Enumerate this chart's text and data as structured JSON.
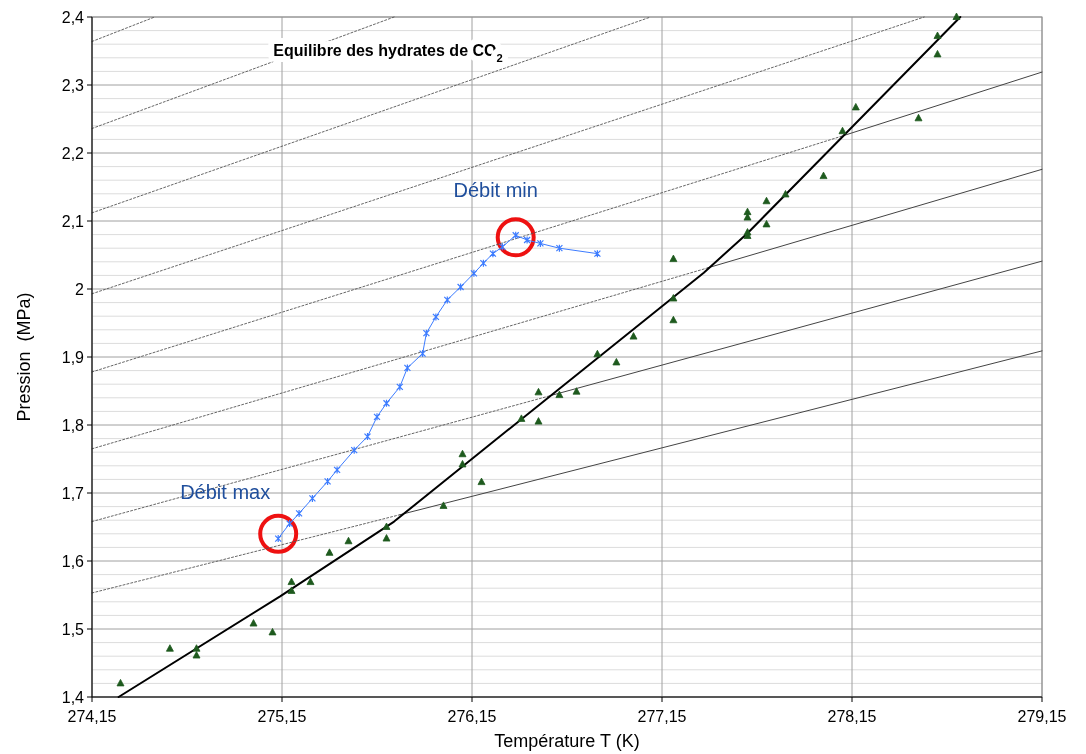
{
  "chart_data": {
    "type": "scatter",
    "title": "Equilibre des hydrates de CO$_{2}$",
    "xlabel": "Température T (K)",
    "ylabel": "Pression  (MPa)",
    "xlim": [
      274.15,
      279.15
    ],
    "ylim": [
      1.4,
      2.4
    ],
    "xticks": [
      {
        "value": 274.15,
        "label": "274,15"
      },
      {
        "value": 275.15,
        "label": "275,15"
      },
      {
        "value": 276.15,
        "label": "276,15"
      },
      {
        "value": 277.15,
        "label": "277,15"
      },
      {
        "value": 278.15,
        "label": "278,15"
      },
      {
        "value": 279.15,
        "label": "279,15"
      }
    ],
    "yticks": [
      {
        "value": 1.4,
        "label": "1,4"
      },
      {
        "value": 1.42,
        "label": null
      },
      {
        "value": 1.44,
        "label": null
      },
      {
        "value": 1.46,
        "label": null
      },
      {
        "value": 1.48,
        "label": null
      },
      {
        "value": 1.5,
        "label": "1,5"
      },
      {
        "value": 1.52,
        "label": null
      },
      {
        "value": 1.54,
        "label": null
      },
      {
        "value": 1.56,
        "label": null
      },
      {
        "value": 1.58,
        "label": null
      },
      {
        "value": 1.6,
        "label": "1,6"
      },
      {
        "value": 1.62,
        "label": null
      },
      {
        "value": 1.64,
        "label": null
      },
      {
        "value": 1.66,
        "label": null
      },
      {
        "value": 1.68,
        "label": null
      },
      {
        "value": 1.7,
        "label": "1,7"
      },
      {
        "value": 1.72,
        "label": null
      },
      {
        "value": 1.74,
        "label": null
      },
      {
        "value": 1.76,
        "label": null
      },
      {
        "value": 1.78,
        "label": null
      },
      {
        "value": 1.8,
        "label": "1,8"
      },
      {
        "value": 1.82,
        "label": null
      },
      {
        "value": 1.84,
        "label": null
      },
      {
        "value": 1.86,
        "label": null
      },
      {
        "value": 1.88,
        "label": null
      },
      {
        "value": 1.9,
        "label": "1,9"
      },
      {
        "value": 1.92,
        "label": null
      },
      {
        "value": 1.94,
        "label": null
      },
      {
        "value": 1.96,
        "label": null
      },
      {
        "value": 1.98,
        "label": null
      },
      2,
      {
        "value": 2.02,
        "label": null
      },
      {
        "value": 2.04,
        "label": null
      },
      {
        "value": 2.06,
        "label": null
      },
      {
        "value": 2.08,
        "label": null
      },
      {
        "value": 2.1,
        "label": "2,1"
      },
      {
        "value": 2.12,
        "label": null
      },
      {
        "value": 2.14,
        "label": null
      },
      {
        "value": 2.16,
        "label": null
      },
      {
        "value": 2.18,
        "label": null
      },
      {
        "value": 2.2,
        "label": "2,2"
      },
      {
        "value": 2.22,
        "label": null
      },
      {
        "value": 2.24,
        "label": null
      },
      {
        "value": 2.26,
        "label": null
      },
      {
        "value": 2.28,
        "label": null
      },
      {
        "value": 2.3,
        "label": "2,3"
      },
      {
        "value": 2.32,
        "label": null
      },
      {
        "value": 2.34,
        "label": null
      },
      {
        "value": 2.36,
        "label": null
      },
      {
        "value": 2.38,
        "label": null
      },
      {
        "value": 2.4,
        "label": "2,4"
      }
    ],
    "grid": true,
    "series": [
      {
        "type": "line",
        "color": "#555555",
        "line_style": "dotted",
        "x": [
          274.15,
          274.48
        ],
        "values": [
          2.364,
          2.4
        ]
      },
      {
        "type": "line",
        "color": "#555555",
        "line_style": "dotted",
        "x": [
          274.15,
          275.74
        ],
        "values": [
          2.236,
          2.4
        ]
      },
      {
        "type": "line",
        "color": "#555555",
        "line_style": "dotted",
        "x": [
          274.15,
          277.09
        ],
        "values": [
          2.112,
          2.4
        ]
      },
      {
        "type": "line",
        "color": "#555555",
        "line_style": "dotted",
        "x": [
          274.15,
          278.53
        ],
        "values": [
          1.993,
          2.4
        ]
      },
      {
        "type": "line",
        "color": "#555555",
        "line_style": "dotted",
        "x": [
          274.15,
          278.11
        ],
        "values": [
          1.878,
          2.226
        ]
      },
      {
        "type": "line",
        "color": "#555555",
        "line_style": "dotted",
        "x": [
          274.15,
          277.39
        ],
        "values": [
          1.765,
          2.031
        ]
      },
      {
        "type": "line",
        "color": "#555555",
        "line_style": "dotted",
        "x": [
          274.15,
          276.56
        ],
        "values": [
          1.658,
          1.843
        ]
      },
      {
        "type": "line",
        "color": "#555555",
        "line_style": "dotted",
        "x": [
          274.15,
          275.77
        ],
        "values": [
          1.553,
          1.668
        ]
      },
      {
        "type": "line",
        "color": "#444444",
        "line_style": "solid",
        "x": [
          278.11,
          279.15
        ],
        "values": [
          2.226,
          2.319
        ]
      },
      {
        "type": "line",
        "color": "#444444",
        "line_style": "solid",
        "x": [
          277.39,
          279.15
        ],
        "values": [
          2.031,
          2.176
        ]
      },
      {
        "type": "line",
        "color": "#444444",
        "line_style": "solid",
        "x": [
          276.56,
          279.15
        ],
        "values": [
          1.843,
          2.041
        ]
      },
      {
        "type": "line",
        "color": "#444444",
        "line_style": "solid",
        "x": [
          275.77,
          279.15
        ],
        "values": [
          1.668,
          1.909
        ]
      },
      {
        "type": "line",
        "color": "#000000",
        "line_style": "solid",
        "x": [
          274.29,
          275.14,
          275.74,
          276.1,
          277.37,
          277.6,
          278.1,
          278.72
        ],
        "values": [
          1.4,
          1.548,
          1.658,
          1.739,
          2.024,
          2.082,
          2.224,
          2.4
        ]
      },
      {
        "color": "#1e5a1e",
        "marker": "triangle",
        "x": [
          274.3,
          274.56,
          274.7,
          274.7,
          275.0,
          275.1,
          275.2,
          275.2,
          275.3,
          275.4,
          275.5,
          275.7,
          275.7,
          276.0,
          276.1,
          276.1,
          276.2,
          276.41,
          276.5,
          276.5,
          276.61,
          276.7,
          276.81,
          276.91,
          277.0,
          277.21,
          277.21,
          277.21,
          277.6,
          277.6,
          277.6,
          277.6,
          277.7,
          277.7,
          277.8,
          278.0,
          278.1,
          278.17,
          278.5,
          278.6,
          278.6,
          278.7
        ],
        "values": [
          1.42,
          1.471,
          1.471,
          1.461,
          1.508,
          1.495,
          1.569,
          1.556,
          1.569,
          1.612,
          1.629,
          1.65,
          1.633,
          1.681,
          1.757,
          1.742,
          1.716,
          1.809,
          1.848,
          1.805,
          1.844,
          1.849,
          1.904,
          1.892,
          1.93,
          2.044,
          1.986,
          1.954,
          2.113,
          2.105,
          2.083,
          2.078,
          2.129,
          2.095,
          2.139,
          2.166,
          2.232,
          2.267,
          2.251,
          2.372,
          2.345,
          2.4
        ]
      },
      {
        "type": "line",
        "color": "#3d7cff",
        "marker": "cross",
        "x": [
          275.13,
          275.19,
          275.24,
          275.31,
          275.39,
          275.44,
          275.53,
          275.6,
          275.65,
          275.7,
          275.77,
          275.81,
          275.89,
          275.91,
          275.96,
          276.02,
          276.09,
          276.16,
          276.21,
          276.26,
          276.31,
          276.38,
          276.44,
          276.51,
          276.61,
          276.81
        ],
        "values": [
          1.633,
          1.655,
          1.67,
          1.692,
          1.717,
          1.734,
          1.763,
          1.783,
          1.812,
          1.832,
          1.856,
          1.884,
          1.905,
          1.935,
          1.959,
          1.984,
          2.003,
          2.023,
          2.038,
          2.052,
          2.062,
          2.079,
          2.072,
          2.067,
          2.06,
          2.052
        ]
      }
    ],
    "annotations": [
      {
        "text": "Débit max",
        "x": 275.13,
        "y": 1.64
      },
      {
        "text": "Débit min",
        "x": 276.38,
        "y": 2.076
      }
    ]
  }
}
